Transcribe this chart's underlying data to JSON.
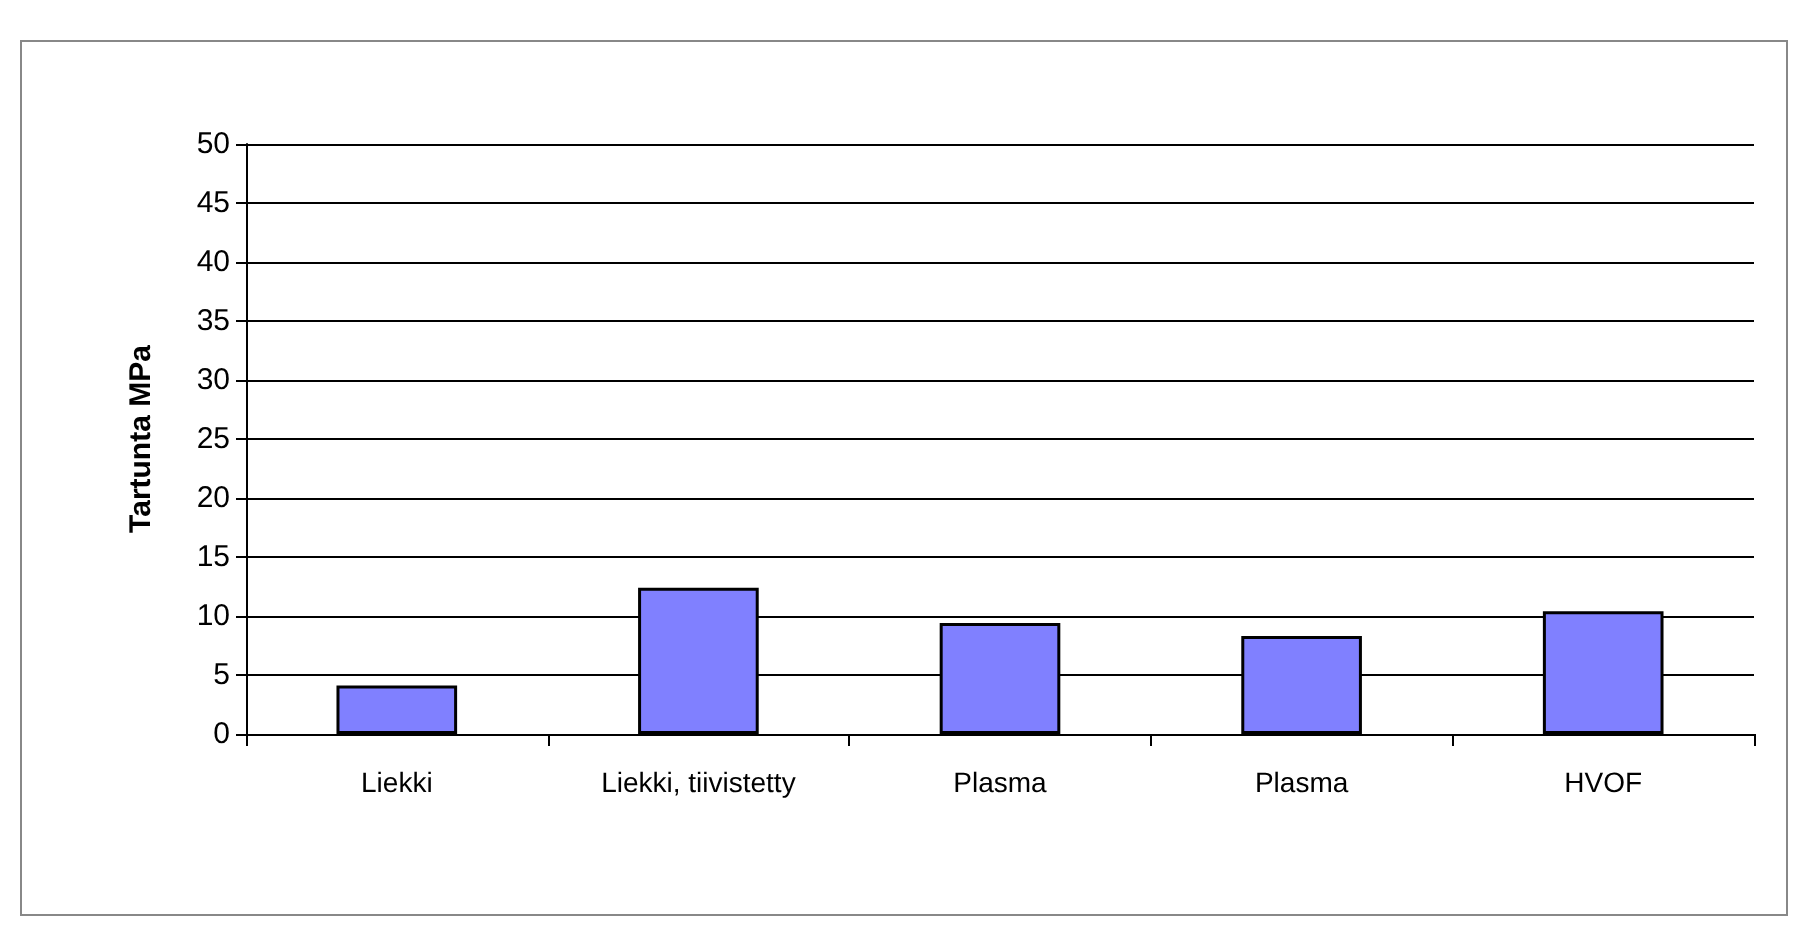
{
  "chart_data": {
    "type": "bar",
    "ylabel": "Tartunta MPa",
    "categories": [
      "Liekki",
      "Liekki, tiivistetty",
      "Plasma",
      "Plasma",
      "HVOF"
    ],
    "values": [
      4.1,
      12.4,
      9.4,
      8.3,
      10.4
    ],
    "color": "#8080ff",
    "ylim": [
      0,
      50
    ],
    "yticks": [
      0,
      5,
      10,
      15,
      20,
      25,
      30,
      35,
      40,
      45,
      50
    ],
    "grid": "y"
  }
}
